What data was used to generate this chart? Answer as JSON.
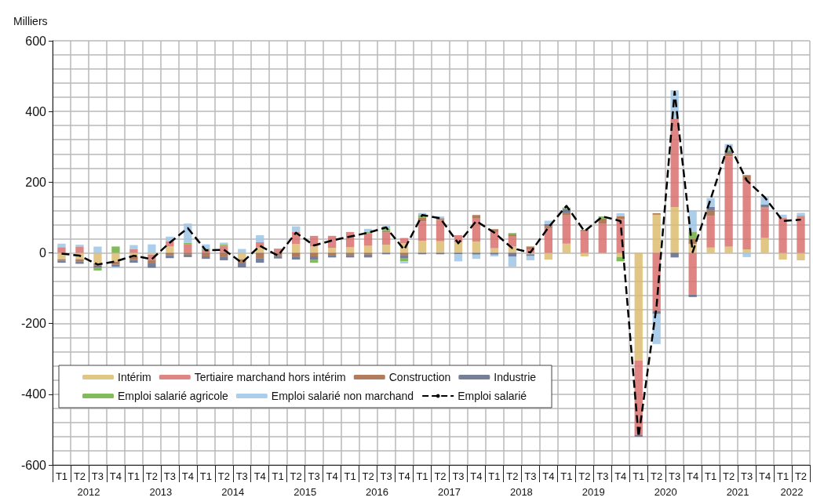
{
  "chart_data": {
    "type": "bar",
    "stacked": true,
    "ylabel": "Milliers",
    "ylim": [
      -600,
      600
    ],
    "yticks": [
      -600,
      -400,
      -200,
      0,
      200,
      400,
      600
    ],
    "grid": true,
    "legend": "bottom left",
    "marker": "none",
    "categories": [
      "T1",
      "T2",
      "T3",
      "T4",
      "T1",
      "T2",
      "T3",
      "T4",
      "T1",
      "T2",
      "T3",
      "T4",
      "T1",
      "T2",
      "T3",
      "T4",
      "T1",
      "T2",
      "T3",
      "T4",
      "T1",
      "T2",
      "T3",
      "T4",
      "T1",
      "T2",
      "T3",
      "T4",
      "T1",
      "T2",
      "T3",
      "T4",
      "T1",
      "T2",
      "T3",
      "T4",
      "T1",
      "T2",
      "T3",
      "T4",
      "T1",
      "T2"
    ],
    "annotations": [
      "2012",
      "2013",
      "2014",
      "2015",
      "2016",
      "2017",
      "2018",
      "2019",
      "2020",
      "2021",
      "2022"
    ],
    "series": [
      {
        "name": "Intérim",
        "color": "#dcbc70",
        "values": [
          -18,
          -18,
          -30,
          -25,
          -10,
          -5,
          18,
          0,
          0,
          0,
          -18,
          15,
          null,
          25,
          18,
          14,
          16,
          20,
          23,
          27,
          34,
          33,
          30,
          32,
          13,
          18,
          -4,
          -19,
          26,
          -10,
          0,
          -12,
          -305,
          108,
          130,
          25,
          15,
          18,
          10,
          42,
          -19,
          -21
        ]
      },
      {
        "name": "Tertiaire marchand hors intérim",
        "color": "#d9706e",
        "values": [
          16,
          18,
          0,
          0,
          10,
          -15,
          15,
          25,
          8,
          20,
          0,
          15,
          12,
          35,
          30,
          34,
          43,
          36,
          35,
          15,
          55,
          60,
          20,
          65,
          46,
          28,
          10,
          70,
          80,
          60,
          83,
          96,
          -210,
          -165,
          250,
          -118,
          90,
          255,
          195,
          85,
          100,
          102
        ]
      },
      {
        "name": "Construction",
        "color": "#a3653e",
        "values": [
          -4,
          -7,
          -6,
          -8,
          -10,
          -10,
          -7,
          -5,
          -10,
          -12,
          -12,
          -15,
          -9,
          -12,
          -10,
          -6,
          -6,
          -5,
          4,
          -6,
          10,
          5,
          0,
          10,
          8,
          6,
          8,
          6,
          8,
          5,
          14,
          8,
          0,
          4,
          null,
          15,
          15,
          10,
          15,
          2,
          0,
          3
        ]
      },
      {
        "name": "Industrie",
        "color": "#5e6888",
        "values": [
          -6,
          -6,
          -6,
          -6,
          -8,
          -12,
          -8,
          -7,
          -7,
          -9,
          -11,
          -13,
          -7,
          -7,
          -10,
          -7,
          -7,
          -8,
          -4,
          -10,
          -4,
          -4,
          -4,
          -5,
          -5,
          -11,
          -5,
          5,
          10,
          0,
          0,
          0,
          -5,
          -8,
          -13,
          -7,
          10,
          5,
          0,
          8,
          0,
          0
        ]
      },
      {
        "name": "Emploi salarié agricole",
        "color": "#6dae3f",
        "values": [
          0,
          0,
          -8,
          18,
          0,
          0,
          0,
          3,
          4,
          4,
          0,
          0,
          0,
          0,
          -8,
          0,
          0,
          4,
          6,
          -8,
          8,
          0,
          0,
          0,
          0,
          4,
          0,
          0,
          4,
          0,
          6,
          -12,
          0,
          0,
          0,
          20,
          0,
          5,
          0,
          0,
          0,
          0
        ]
      },
      {
        "name": "Emploi salarié non marchand",
        "color": "#9fc5e8",
        "values": [
          10,
          5,
          18,
          -4,
          12,
          24,
          13,
          55,
          12,
          5,
          11,
          20,
          0,
          15,
          0,
          0,
          0,
          8,
          8,
          -6,
          6,
          5,
          -20,
          -12,
          -5,
          -28,
          -12,
          10,
          null,
          null,
          0,
          8,
          0,
          -85,
          80,
          60,
          25,
          15,
          -12,
          20,
          8,
          8
        ]
      },
      {
        "name": "Emploi salarié",
        "type": "line",
        "color": "#000000",
        "line_style": "dashed",
        "values": [
          -2,
          -8,
          -33,
          -24,
          -8,
          -18,
          29,
          70,
          7,
          9,
          -28,
          20,
          -8,
          57,
          21,
          35,
          46,
          57,
          72,
          9,
          107,
          98,
          27,
          90,
          57,
          13,
          1,
          72,
          133,
          61,
          103,
          90,
          -520,
          -150,
          456,
          2,
          153,
          309,
          205,
          157,
          90,
          94
        ]
      }
    ]
  }
}
